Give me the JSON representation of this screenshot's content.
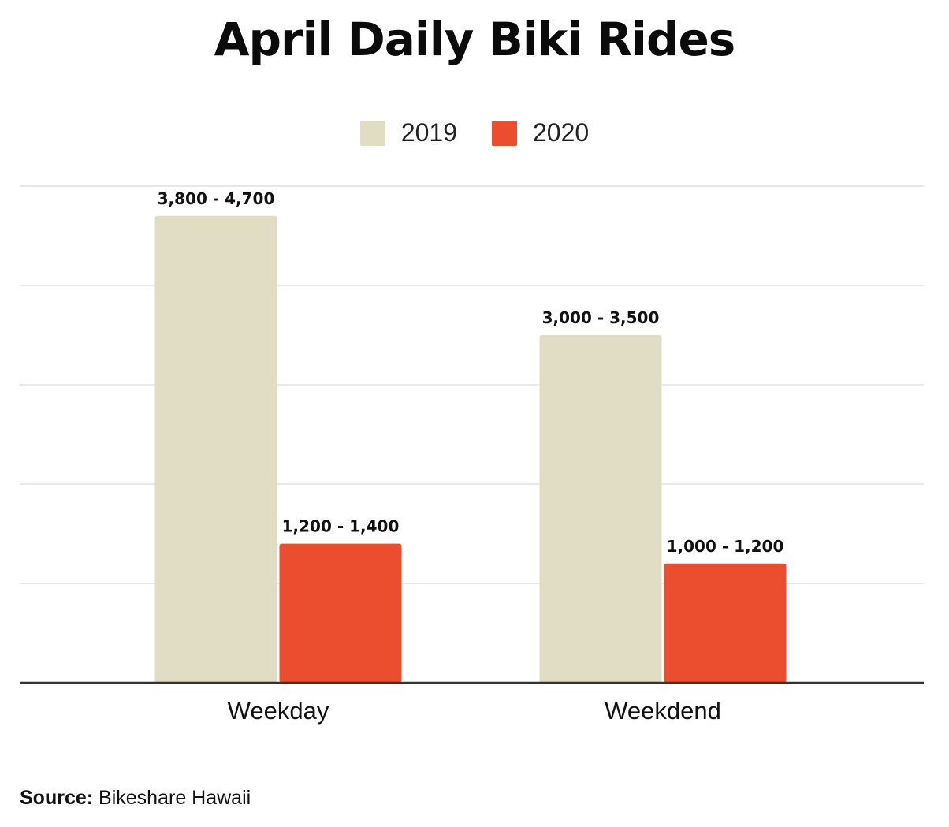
{
  "title": "April Daily Biki Rides",
  "legend": [
    {
      "label": "2019",
      "color": "#e1dcc4"
    },
    {
      "label": "2020",
      "color": "#ea4e2f"
    }
  ],
  "source": {
    "prefix": "Source:",
    "text": "Bikeshare Hawaii"
  },
  "chart_data": {
    "type": "bar",
    "title": "April Daily Biki Rides",
    "categories": [
      "Weekday",
      "Weekdend"
    ],
    "series": [
      {
        "name": "2019",
        "color": "#e1dcc4",
        "values": [
          4700,
          3500
        ],
        "labels": [
          "3,800 - 4,700",
          "3,000 - 3,500"
        ]
      },
      {
        "name": "2020",
        "color": "#ea4e2f",
        "values": [
          1400,
          1200
        ],
        "labels": [
          "1,200 - 1,400",
          "1,000 - 1,200"
        ]
      }
    ],
    "ylim": [
      0,
      5000
    ],
    "grid": true,
    "legend_position": "top-center",
    "xlabel": "",
    "ylabel": ""
  }
}
